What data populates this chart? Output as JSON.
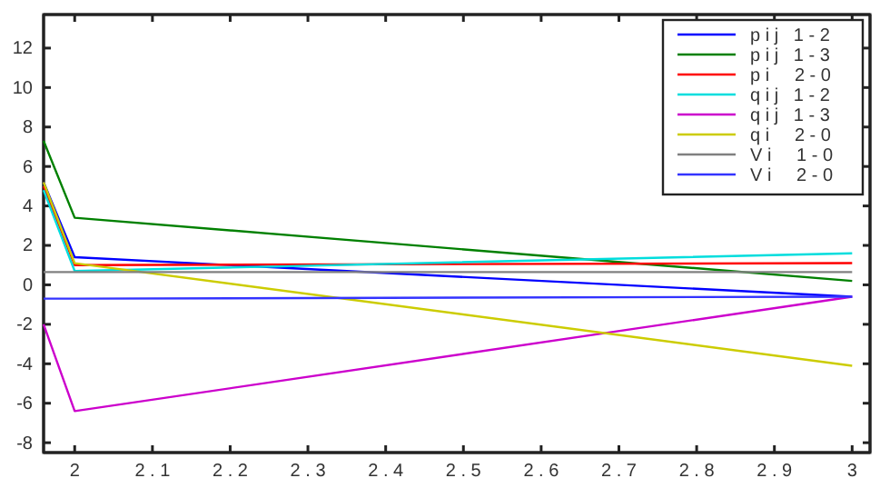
{
  "chart_data": {
    "type": "line",
    "x": [
      1.96,
      2,
      3
    ],
    "xlim": [
      1.96,
      3.023
    ],
    "ylim": [
      -8.5,
      13.7
    ],
    "xticks": [
      2,
      2.1,
      2.2,
      2.3,
      2.4,
      2.5,
      2.6,
      2.7,
      2.8,
      2.9,
      3
    ],
    "yticks": [
      -8,
      -6,
      -4,
      -2,
      0,
      2,
      4,
      6,
      8,
      10,
      12
    ],
    "legend": "top right",
    "grid": false,
    "series": [
      {
        "name": "p i j   1 - 2",
        "color": "#0000ff",
        "values": [
          5.2,
          1.4,
          -0.6
        ]
      },
      {
        "name": "p i j   1 - 3",
        "color": "#008000",
        "values": [
          7.3,
          3.4,
          0.2
        ]
      },
      {
        "name": "p i     2 - 0",
        "color": "#ff0000",
        "values": [
          5,
          1.0,
          1.1
        ]
      },
      {
        "name": "q i j   1 - 2",
        "color": "#00dddd",
        "values": [
          4.8,
          0.7,
          1.6
        ]
      },
      {
        "name": "q i j   1 - 3",
        "color": "#cc00cc",
        "values": [
          -2,
          -6.4,
          -0.6
        ]
      },
      {
        "name": "q i     2 - 0",
        "color": "#cccc00",
        "values": [
          5.2,
          1.1,
          -4.1
        ]
      },
      {
        "name": "V i     1 - 0",
        "color": "#808080",
        "values": [
          0.65,
          0.65,
          0.65
        ]
      },
      {
        "name": "V i     2 - 0",
        "color": "#3333ff",
        "values": [
          -0.7,
          -0.7,
          -0.6
        ]
      }
    ]
  }
}
